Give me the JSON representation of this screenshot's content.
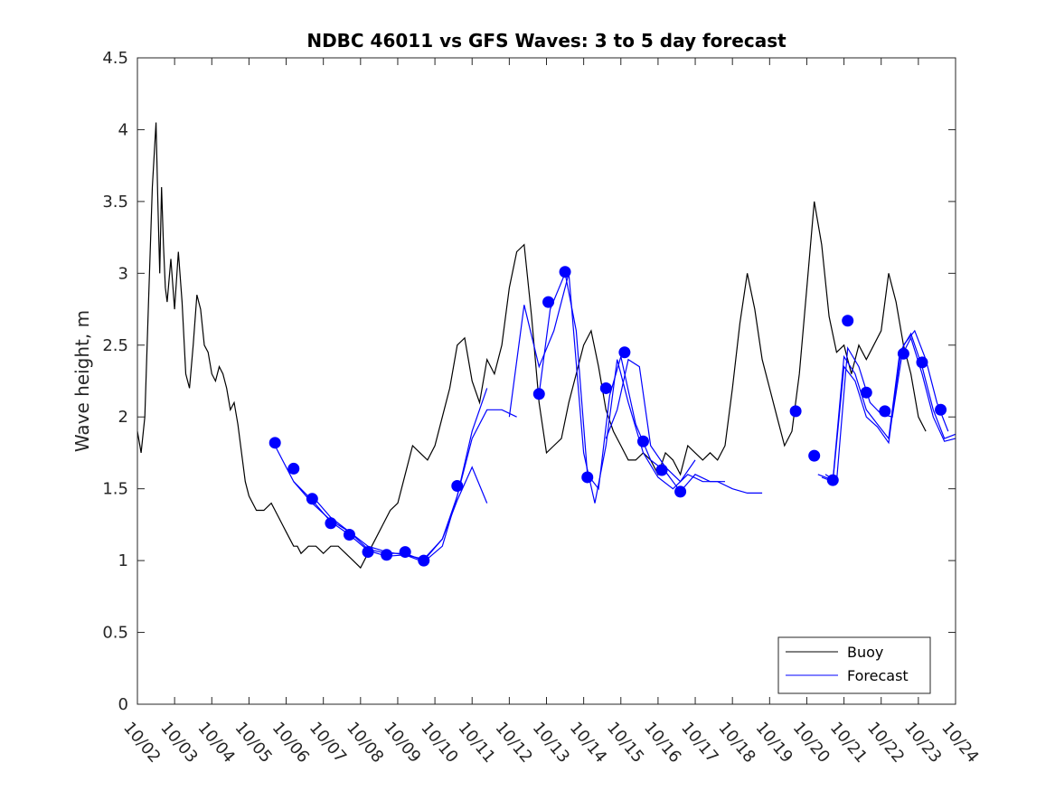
{
  "chart_data": {
    "type": "line",
    "title": "NDBC 46011 vs GFS Waves: 3 to 5 day forecast",
    "xlabel": "",
    "ylabel": "Wave height, m",
    "xlim": [
      0,
      22
    ],
    "ylim": [
      0,
      4.5
    ],
    "x_tick_labels": [
      "10/02",
      "10/03",
      "10/04",
      "10/05",
      "10/06",
      "10/07",
      "10/08",
      "10/09",
      "10/10",
      "10/11",
      "10/12",
      "10/13",
      "10/14",
      "10/15",
      "10/16",
      "10/17",
      "10/18",
      "10/19",
      "10/20",
      "10/21",
      "10/22",
      "10/23",
      "10/24"
    ],
    "y_ticks": [
      0,
      0.5,
      1,
      1.5,
      2,
      2.5,
      3,
      3.5,
      4,
      4.5
    ],
    "y_tick_labels": [
      "0",
      "0.5",
      "1",
      "1.5",
      "2",
      "2.5",
      "3",
      "3.5",
      "4",
      "4.5"
    ],
    "legend": {
      "position": "bottom-right",
      "entries": [
        "Buoy",
        "Forecast"
      ]
    },
    "colors": {
      "buoy": "#000000",
      "forecast": "#0000ff",
      "axis": "#262626"
    },
    "series": [
      {
        "name": "Buoy",
        "x": [
          0,
          0.1,
          0.2,
          0.3,
          0.4,
          0.5,
          0.55,
          0.6,
          0.65,
          0.7,
          0.75,
          0.8,
          0.9,
          1.0,
          1.1,
          1.2,
          1.3,
          1.4,
          1.5,
          1.6,
          1.7,
          1.8,
          1.9,
          2.0,
          2.1,
          2.2,
          2.3,
          2.4,
          2.5,
          2.6,
          2.7,
          2.8,
          2.9,
          3.0,
          3.2,
          3.4,
          3.6,
          3.8,
          3.9,
          4.0,
          4.1,
          4.2,
          4.3,
          4.4,
          4.6,
          4.8,
          5.0,
          5.2,
          5.4,
          5.6,
          5.8,
          6.0,
          6.2,
          6.4,
          6.6,
          6.8,
          7.0,
          7.2,
          7.4,
          7.6,
          7.8,
          8.0,
          8.2,
          8.4,
          8.6,
          8.8,
          9.0,
          9.2,
          9.4,
          9.6,
          9.8,
          10.0,
          10.2,
          10.4,
          10.6,
          10.8,
          11.0,
          11.2,
          11.4,
          11.6,
          11.8,
          12.0,
          12.2,
          12.4,
          12.6,
          12.8,
          13.0,
          13.2,
          13.4,
          13.6,
          13.8,
          14.0,
          14.2,
          14.4,
          14.6,
          14.8,
          15.0,
          15.2,
          15.4,
          15.6,
          15.8,
          16.0,
          16.2,
          16.4,
          16.6,
          16.8,
          17.0,
          17.2,
          17.4,
          17.6,
          17.8,
          18.0,
          18.2,
          18.4,
          18.6,
          18.8,
          19.0,
          19.2,
          19.4,
          19.6,
          19.8,
          20.0,
          20.2,
          20.4,
          20.6,
          20.8,
          21.0,
          21.2
        ],
        "values": [
          1.9,
          1.75,
          2.0,
          2.8,
          3.6,
          4.05,
          3.5,
          3.0,
          3.6,
          3.2,
          2.9,
          2.8,
          3.1,
          2.75,
          3.15,
          2.8,
          2.3,
          2.2,
          2.5,
          2.85,
          2.75,
          2.5,
          2.45,
          2.3,
          2.25,
          2.35,
          2.3,
          2.2,
          2.05,
          2.1,
          1.95,
          1.75,
          1.55,
          1.45,
          1.35,
          1.35,
          1.4,
          1.3,
          1.25,
          1.2,
          1.15,
          1.1,
          1.1,
          1.05,
          1.1,
          1.1,
          1.05,
          1.1,
          1.1,
          1.05,
          1.0,
          0.95,
          1.05,
          1.15,
          1.25,
          1.35,
          1.4,
          1.6,
          1.8,
          1.75,
          1.7,
          1.8,
          2.0,
          2.2,
          2.5,
          2.55,
          2.25,
          2.1,
          2.4,
          2.3,
          2.5,
          2.9,
          3.15,
          3.2,
          2.7,
          2.1,
          1.75,
          1.8,
          1.85,
          2.1,
          2.3,
          2.5,
          2.6,
          2.35,
          2.05,
          1.9,
          1.8,
          1.7,
          1.7,
          1.75,
          1.7,
          1.6,
          1.75,
          1.7,
          1.6,
          1.8,
          1.75,
          1.7,
          1.75,
          1.7,
          1.8,
          2.2,
          2.65,
          3.0,
          2.75,
          2.4,
          2.2,
          2.0,
          1.8,
          1.9,
          2.3,
          2.9,
          3.5,
          3.2,
          2.7,
          2.45,
          2.5,
          2.3,
          2.5,
          2.4,
          2.5,
          2.6,
          3.0,
          2.8,
          2.5,
          2.3,
          2.0,
          1.9
        ]
      },
      {
        "name": "Forecast markers",
        "x": [
          3.7,
          4.2,
          4.7,
          5.2,
          5.7,
          6.2,
          6.7,
          7.2,
          7.7,
          8.6,
          10.8,
          11.05,
          11.5,
          12.1,
          12.6,
          13.1,
          13.6,
          14.1,
          14.6,
          17.7,
          18.2,
          18.7,
          19.1,
          19.6,
          20.1,
          20.6,
          21.1,
          21.6
        ],
        "values": [
          1.82,
          1.64,
          1.43,
          1.26,
          1.18,
          1.06,
          1.04,
          1.06,
          1.0,
          1.52,
          2.16,
          2.8,
          3.01,
          1.58,
          2.2,
          2.45,
          1.83,
          1.63,
          1.48,
          2.04,
          1.73,
          1.56,
          2.67,
          2.17,
          2.04,
          2.44,
          2.38,
          2.05
        ]
      }
    ],
    "forecast_runs": [
      {
        "x": [
          3.7,
          4.2,
          4.7,
          5.2,
          5.7,
          6.2,
          6.7,
          7.2,
          7.7,
          8.2,
          8.6,
          9.0,
          9.4
        ],
        "values": [
          1.8,
          1.55,
          1.42,
          1.27,
          1.18,
          1.07,
          1.03,
          1.04,
          0.99,
          1.1,
          1.45,
          1.9,
          2.2
        ]
      },
      {
        "x": [
          4.2,
          4.7,
          5.2,
          5.7,
          6.2,
          6.7,
          7.2,
          7.7,
          8.2,
          8.6,
          9.0,
          9.4
        ],
        "values": [
          1.55,
          1.4,
          1.28,
          1.2,
          1.08,
          1.05,
          1.05,
          1.0,
          1.15,
          1.42,
          1.65,
          1.4
        ]
      },
      {
        "x": [
          4.7,
          5.2,
          5.7,
          6.2,
          6.7,
          7.2,
          7.7,
          8.2,
          8.6,
          9.0,
          9.4,
          9.8,
          10.2
        ],
        "values": [
          1.45,
          1.3,
          1.2,
          1.1,
          1.06,
          1.04,
          1.01,
          1.15,
          1.45,
          1.85,
          2.05,
          2.05,
          2.0
        ]
      },
      {
        "x": [
          10.0,
          10.4,
          10.8,
          11.2,
          11.6,
          12.0,
          12.3,
          12.6,
          12.9,
          13.2,
          13.6,
          14.0,
          14.4,
          14.8,
          15.2,
          15.6,
          16.0,
          16.4,
          16.8
        ],
        "values": [
          2.0,
          2.78,
          2.35,
          2.6,
          3.0,
          1.75,
          1.4,
          1.8,
          2.4,
          2.1,
          1.75,
          1.58,
          1.5,
          1.6,
          1.55,
          1.55,
          1.5,
          1.47,
          1.47
        ]
      },
      {
        "x": [
          10.8,
          11.1,
          11.5,
          11.8,
          12.1,
          12.4,
          12.7,
          13.0,
          13.4,
          13.8,
          14.2,
          14.6,
          15.0,
          15.4,
          15.8
        ],
        "values": [
          2.16,
          2.75,
          3.0,
          2.6,
          1.6,
          1.5,
          2.15,
          2.42,
          1.95,
          1.7,
          1.62,
          1.48,
          1.6,
          1.55,
          1.55
        ]
      },
      {
        "x": [
          12.6,
          12.9,
          13.2,
          13.5,
          13.8,
          14.2,
          14.6,
          15.0
        ],
        "values": [
          1.85,
          2.05,
          2.4,
          2.35,
          1.8,
          1.65,
          1.55,
          1.7
        ]
      },
      {
        "x": [
          18.3,
          18.7,
          19.0,
          19.3,
          19.6,
          19.9,
          20.2,
          20.5,
          20.8,
          21.1,
          21.4,
          21.7,
          22.0
        ],
        "values": [
          1.6,
          1.56,
          2.42,
          2.3,
          2.05,
          1.95,
          1.85,
          2.45,
          2.58,
          2.35,
          2.05,
          1.85,
          1.88
        ]
      },
      {
        "x": [
          18.4,
          18.7,
          19.0,
          19.3,
          19.6,
          19.9,
          20.2,
          20.5,
          20.8,
          21.1,
          21.4,
          21.7,
          22.0
        ],
        "values": [
          1.58,
          1.55,
          2.35,
          2.25,
          2.0,
          1.93,
          1.82,
          2.4,
          2.55,
          2.3,
          2.0,
          1.83,
          1.85
        ]
      },
      {
        "x": [
          18.5,
          18.8,
          19.1,
          19.4,
          19.7,
          20.0,
          20.3,
          20.6,
          20.9,
          21.2,
          21.5,
          21.8
        ],
        "values": [
          1.6,
          1.55,
          2.48,
          2.35,
          2.1,
          2.02,
          2.0,
          2.5,
          2.6,
          2.4,
          2.1,
          1.9
        ]
      }
    ]
  }
}
